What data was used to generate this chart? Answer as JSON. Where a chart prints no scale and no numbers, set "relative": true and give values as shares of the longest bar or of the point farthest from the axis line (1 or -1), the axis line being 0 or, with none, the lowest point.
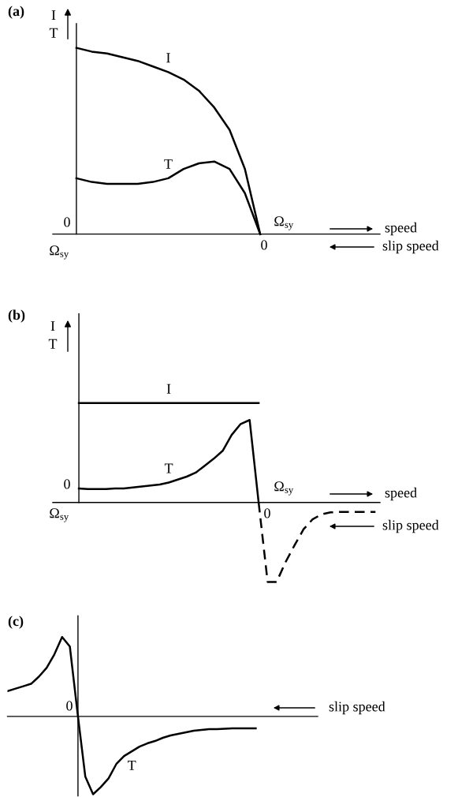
{
  "chart_data": [
    {
      "type": "line",
      "title": "(a)",
      "ylabel": "I\nT",
      "relative": true,
      "grid": false,
      "legend": false,
      "marker": "none",
      "categories": [
        null,
        null,
        null,
        null,
        null,
        null,
        null,
        null,
        null,
        null,
        null,
        null,
        null,
        null,
        null,
        null,
        null,
        null,
        null,
        null
      ],
      "series": [
        {
          "name": "I",
          "color": "#000000",
          "line_style": "solid",
          "values": [
            1,
            0.98,
            0.97,
            0.95,
            0.93,
            0.9,
            0.87,
            0.83,
            0.77,
            0.68,
            0.56,
            0.35,
            0,
            null,
            null,
            null,
            null,
            null,
            null,
            null
          ]
        },
        {
          "name": "T",
          "color": "#000000",
          "line_style": "solid",
          "values": [
            0.3,
            0.28,
            0.27,
            0.27,
            0.27,
            0.28,
            0.3,
            0.35,
            0.38,
            0.39,
            0.35,
            0.22,
            0,
            null,
            null,
            null,
            null,
            null,
            null,
            null
          ]
        }
      ],
      "annotations": [
        "0",
        "Ω$_{sy}$",
        "Ω$_{sy}$",
        "0",
        "speed",
        "slip speed"
      ]
    },
    {
      "type": "line",
      "title": "(b)",
      "ylabel": "I\nT",
      "relative": true,
      "grid": false,
      "legend": false,
      "marker": "none",
      "categories": [
        null,
        null,
        null,
        null,
        null,
        null,
        null,
        null,
        null,
        null,
        null,
        null,
        null,
        null,
        null,
        null,
        null,
        null,
        null,
        null,
        null,
        null,
        null,
        null,
        null,
        null,
        null,
        null,
        null,
        null,
        null,
        null,
        null,
        null
      ],
      "series": [
        {
          "name": "I",
          "color": "#000000",
          "line_style": "solid",
          "values": [
            1,
            1,
            1,
            1,
            1,
            1,
            1,
            1,
            1,
            1,
            1,
            1,
            1,
            1,
            1,
            1,
            1,
            1,
            1,
            1,
            1,
            null,
            null,
            null,
            null,
            null,
            null,
            null,
            null,
            null,
            null,
            null,
            null,
            null
          ]
        },
        {
          "name": "T",
          "color": "#000000",
          "line_style": "solid",
          "values": [
            0.14,
            0.135,
            0.135,
            0.135,
            0.14,
            0.14,
            0.15,
            0.16,
            0.17,
            0.18,
            0.2,
            0.23,
            0.26,
            0.3,
            0.37,
            0.44,
            0.52,
            0.68,
            0.79,
            0.83,
            0,
            null,
            null,
            null,
            null,
            null,
            null,
            null,
            null,
            null,
            null,
            null,
            null,
            null
          ]
        },
        {
          "color": "#000000",
          "line_style": "dashed",
          "values": [
            null,
            null,
            null,
            null,
            null,
            null,
            null,
            null,
            null,
            null,
            null,
            null,
            null,
            null,
            null,
            null,
            null,
            null,
            null,
            null,
            0,
            -0.8,
            -0.8,
            -0.6,
            -0.43,
            -0.27,
            -0.17,
            -0.12,
            -0.1,
            -0.095,
            -0.095,
            -0.095,
            -0.095,
            -0.095
          ]
        }
      ],
      "annotations": [
        "0",
        "Ω$_{sy}$",
        "Ω$_{sy}$",
        "0",
        "speed",
        "slip speed"
      ]
    },
    {
      "type": "line",
      "title": "(c)",
      "relative": true,
      "grid": false,
      "legend": false,
      "marker": "none",
      "categories": [
        null,
        null,
        null,
        null,
        null,
        null,
        null,
        null,
        null,
        null,
        null,
        null,
        null,
        null,
        null,
        null,
        null,
        null,
        null,
        null,
        null,
        null,
        null,
        null,
        null,
        null,
        null,
        null,
        null,
        null,
        null,
        null,
        null,
        null,
        null,
        null,
        null,
        null,
        null,
        null,
        null
      ],
      "series": [
        {
          "name": "T",
          "color": "#000000",
          "line_style": "solid",
          "values": [
            0.32,
            0.35,
            0.38,
            0.41,
            0.5,
            0.61,
            0.78,
            1,
            0.88,
            0.04,
            -0.76,
            -0.98,
            -0.89,
            -0.78,
            -0.6,
            -0.5,
            -0.44,
            -0.38,
            -0.34,
            -0.31,
            -0.27,
            -0.24,
            -0.22,
            -0.2,
            -0.18,
            -0.17,
            -0.16,
            -0.16,
            -0.155,
            -0.15,
            -0.15,
            -0.15,
            -0.15,
            null,
            null,
            null,
            null,
            null,
            null,
            null,
            null
          ]
        }
      ],
      "annotations": [
        "0",
        "slip speed"
      ]
    }
  ]
}
